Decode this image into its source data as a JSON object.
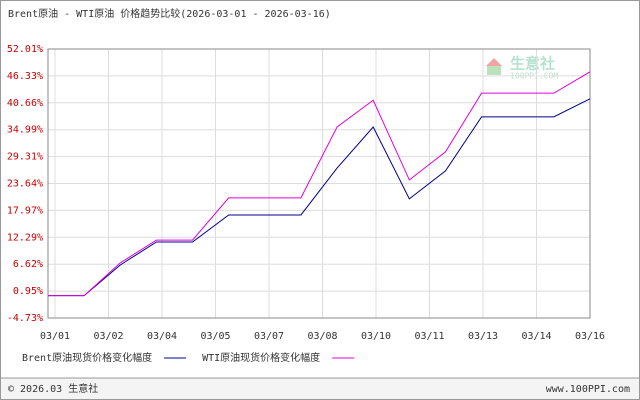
{
  "chart_data": {
    "type": "line",
    "title": "Brent原油 - WTI原油 价格趋势比较(2026-03-01 - 2026-03-16)",
    "xticks": [
      "03/01",
      "03/02",
      "03/04",
      "03/05",
      "03/07",
      "03/08",
      "03/10",
      "03/11",
      "03/13",
      "03/14",
      "03/16"
    ],
    "series": [
      {
        "name": "Brent原油现货价格变化幅度",
        "color": "#00008b",
        "values": [
          0,
          0,
          6.45,
          11.3,
          11.3,
          17.0,
          17.0,
          17.0,
          26.9,
          35.56,
          20.4,
          26.3,
          37.7,
          37.7,
          37.7,
          41.5
        ]
      },
      {
        "name": "WTI原油现货价格变化幅度",
        "color": "#e000e0",
        "values": [
          0,
          0,
          6.9,
          11.7,
          11.7,
          20.6,
          20.6,
          20.6,
          35.56,
          41.2,
          24.4,
          30.3,
          42.7,
          42.7,
          42.7,
          47.2
        ]
      }
    ],
    "ylim": [
      -4.73,
      52.01
    ],
    "yticks": [
      {
        "value": -4.73,
        "label": "-4.73%"
      },
      {
        "value": 0.95,
        "label": "0.95%"
      },
      {
        "value": 6.62,
        "label": "6.62%"
      },
      {
        "value": 12.29,
        "label": "12.29%"
      },
      {
        "value": 17.97,
        "label": "17.97%"
      },
      {
        "value": 23.64,
        "label": "23.64%"
      },
      {
        "value": 29.31,
        "label": "29.31%"
      },
      {
        "value": 34.99,
        "label": "34.99%"
      },
      {
        "value": 40.66,
        "label": "40.66%"
      },
      {
        "value": 46.33,
        "label": "46.33%"
      },
      {
        "value": 52.01,
        "label": "52.01%"
      }
    ],
    "grid": true,
    "watermark": {
      "name": "生意社",
      "site": "100PPI.COM"
    },
    "footer": {
      "left": "© 2026.03 生意社",
      "right": "www.100PPI.com"
    }
  }
}
